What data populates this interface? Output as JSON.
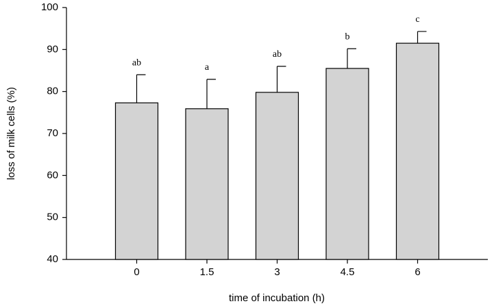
{
  "chart_data": {
    "type": "bar",
    "x_label": "time of incubation (h)",
    "y_label": "loss of milk cells (%)",
    "categories": [
      "0",
      "1.5",
      "3",
      "4.5",
      "6"
    ],
    "values": [
      77.3,
      75.9,
      79.8,
      85.5,
      91.5
    ],
    "errors": [
      6.7,
      7.0,
      6.2,
      4.7,
      2.8
    ],
    "significance_labels": [
      "ab",
      "a",
      "ab",
      "b",
      "c"
    ],
    "color": "#d3d3d3",
    "ylim": [
      40,
      100
    ],
    "yticks": [
      40,
      50,
      60,
      70,
      80,
      90,
      100
    ],
    "grid": false
  }
}
